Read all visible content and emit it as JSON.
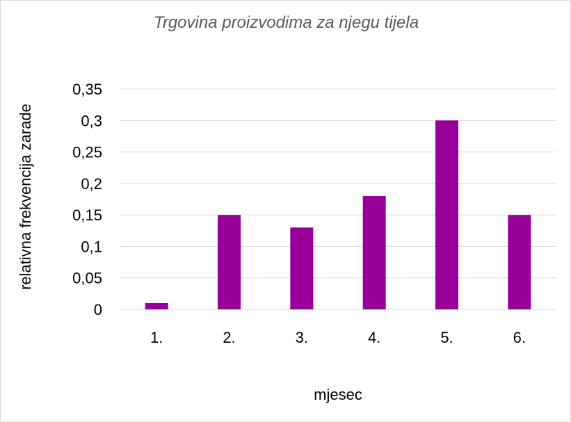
{
  "chart_data": {
    "type": "bar",
    "title": "Trgovina proizvodima za njegu tijela",
    "xlabel": "mjesec",
    "ylabel": "relativna frekvencija zarade",
    "categories": [
      "1.",
      "2.",
      "3.",
      "4.",
      "5.",
      "6."
    ],
    "values": [
      0.01,
      0.15,
      0.13,
      0.18,
      0.3,
      0.15
    ],
    "ylim": [
      0,
      0.35
    ],
    "yticks": [
      "0",
      "0,05",
      "0,1",
      "0,15",
      "0,2",
      "0,25",
      "0,3",
      "0,35"
    ],
    "grid": true,
    "legend": "none",
    "bar_color": "#990099"
  }
}
